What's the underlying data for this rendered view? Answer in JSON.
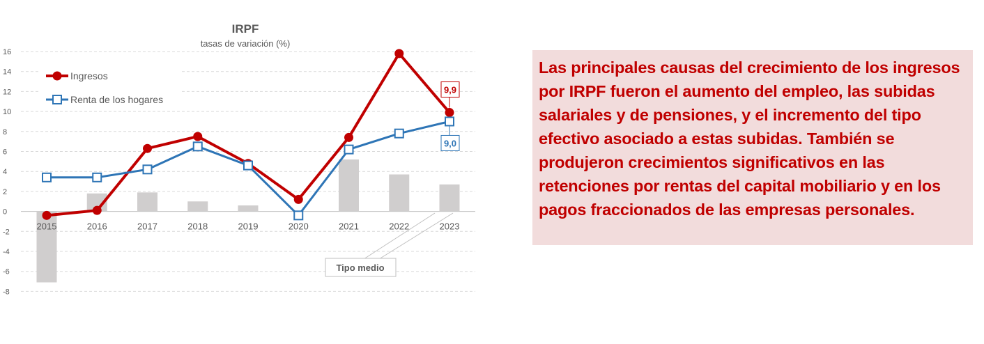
{
  "chart_data": {
    "type": "line",
    "title": "IRPF",
    "subtitle": "tasas de variación (%)",
    "categories": [
      "2015",
      "2016",
      "2017",
      "2018",
      "2019",
      "2020",
      "2021",
      "2022",
      "2023"
    ],
    "ylim": [
      -8,
      16
    ],
    "yticks": [
      "16",
      "14",
      "12",
      "10",
      "8",
      "6",
      "4",
      "2",
      "0",
      "-2",
      "-4",
      "-6",
      "-8"
    ],
    "grid": true,
    "legend_position": "top-left",
    "series": [
      {
        "name": "Ingresos",
        "kind": "line",
        "marker": "circle",
        "color": "#c00000",
        "values": [
          -0.4,
          0.1,
          6.3,
          7.5,
          4.8,
          1.2,
          7.4,
          15.8,
          9.9
        ]
      },
      {
        "name": "Renta de los hogares",
        "kind": "line",
        "marker": "square",
        "color": "#2e75b6",
        "values": [
          3.4,
          3.4,
          4.2,
          6.5,
          4.6,
          -0.4,
          6.2,
          7.8,
          9.0
        ]
      },
      {
        "name": "Tipo medio",
        "kind": "bar",
        "color": "#d0cece",
        "values": [
          -7.1,
          1.8,
          1.9,
          1.0,
          0.6,
          0.0,
          5.2,
          3.7,
          2.7
        ]
      }
    ],
    "data_labels": [
      {
        "series": "Ingresos",
        "category": "2023",
        "text": "9,9"
      },
      {
        "series": "Renta de los hogares",
        "category": "2023",
        "text": "9,0"
      }
    ],
    "annotation": "Tipo medio"
  },
  "callout": {
    "before_bold": "Las principales causas del crecimiento de los ingresos por ",
    "bold": "IRPF",
    "after_bold": " fueron el aumento del empleo, las subidas salariales y de pensiones, y el incremento del tipo efectivo asociado a estas subidas. También se produjeron crecimientos significativos en las retenciones por rentas del capital mobiliario y en los pagos fraccionados de las empresas personales."
  },
  "colors": {
    "red": "#c00000",
    "blue": "#2e75b6",
    "bar": "#d0cece",
    "callout_bg": "#f2dcdc",
    "grid": "#d9d9d9"
  }
}
